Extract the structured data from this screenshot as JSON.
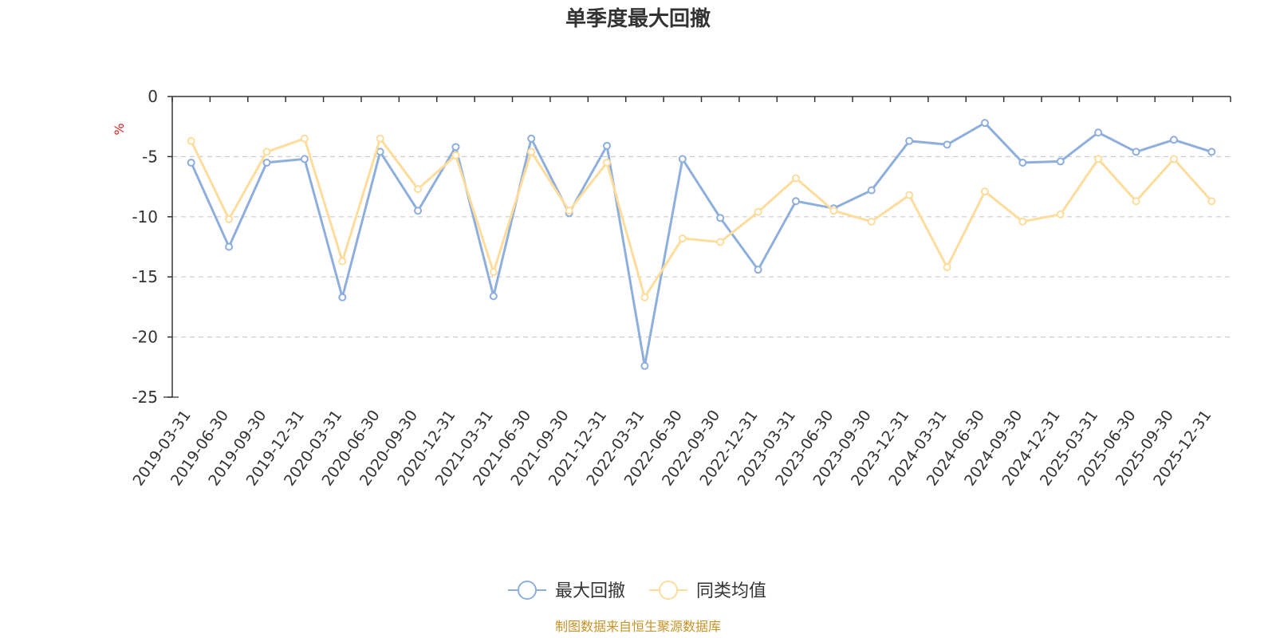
{
  "chart_data": {
    "type": "line",
    "title": "单季度最大回撤",
    "ylabel": "%",
    "ylim": [
      -25,
      0
    ],
    "yticks": [
      0,
      -5,
      -10,
      -15,
      -20,
      -25
    ],
    "grid": true,
    "legend_position": "bottom-center",
    "categories": [
      "2019-03-31",
      "2019-06-30",
      "2019-09-30",
      "2019-12-31",
      "2020-03-31",
      "2020-06-30",
      "2020-09-30",
      "2020-12-31",
      "2021-03-31",
      "2021-06-30",
      "2021-09-30",
      "2021-12-31",
      "2022-03-31",
      "2022-06-30",
      "2022-09-30",
      "2022-12-31",
      "2023-03-31",
      "2023-06-30",
      "2023-09-30",
      "2023-12-31",
      "2024-03-31",
      "2024-06-30",
      "2024-09-30",
      "2024-12-31",
      "2025-03-31",
      "2025-06-30",
      "2025-09-30",
      "2025-12-31"
    ],
    "series": [
      {
        "name": "最大回撤",
        "color": "#8eaedc",
        "values": [
          -5.5,
          -12.5,
          -5.5,
          -5.2,
          -16.7,
          -4.6,
          -9.5,
          -4.2,
          -16.6,
          -3.5,
          -9.7,
          -4.1,
          -22.4,
          -5.2,
          -10.1,
          -14.4,
          -8.7,
          -9.3,
          -7.8,
          -3.7,
          -4.0,
          -2.2,
          -5.5,
          -5.4,
          -3.0,
          -4.6,
          -3.6,
          -4.6
        ]
      },
      {
        "name": "同类均值",
        "color": "#fddc9c",
        "values": [
          -3.7,
          -10.2,
          -4.6,
          -3.5,
          -13.7,
          -3.5,
          -7.7,
          -4.9,
          -14.6,
          -4.6,
          -9.5,
          -5.5,
          -16.7,
          -11.8,
          -12.1,
          -9.6,
          -6.8,
          -9.5,
          -10.4,
          -8.2,
          -14.2,
          -7.9,
          -10.4,
          -9.8,
          -5.2,
          -8.7,
          -5.2,
          -8.7
        ]
      }
    ],
    "source_note": "制图数据来自恒生聚源数据库",
    "colors": {
      "axis": "#333333",
      "grid": "#cccccc",
      "unit": "#e02020",
      "source": "#c8922a"
    }
  }
}
